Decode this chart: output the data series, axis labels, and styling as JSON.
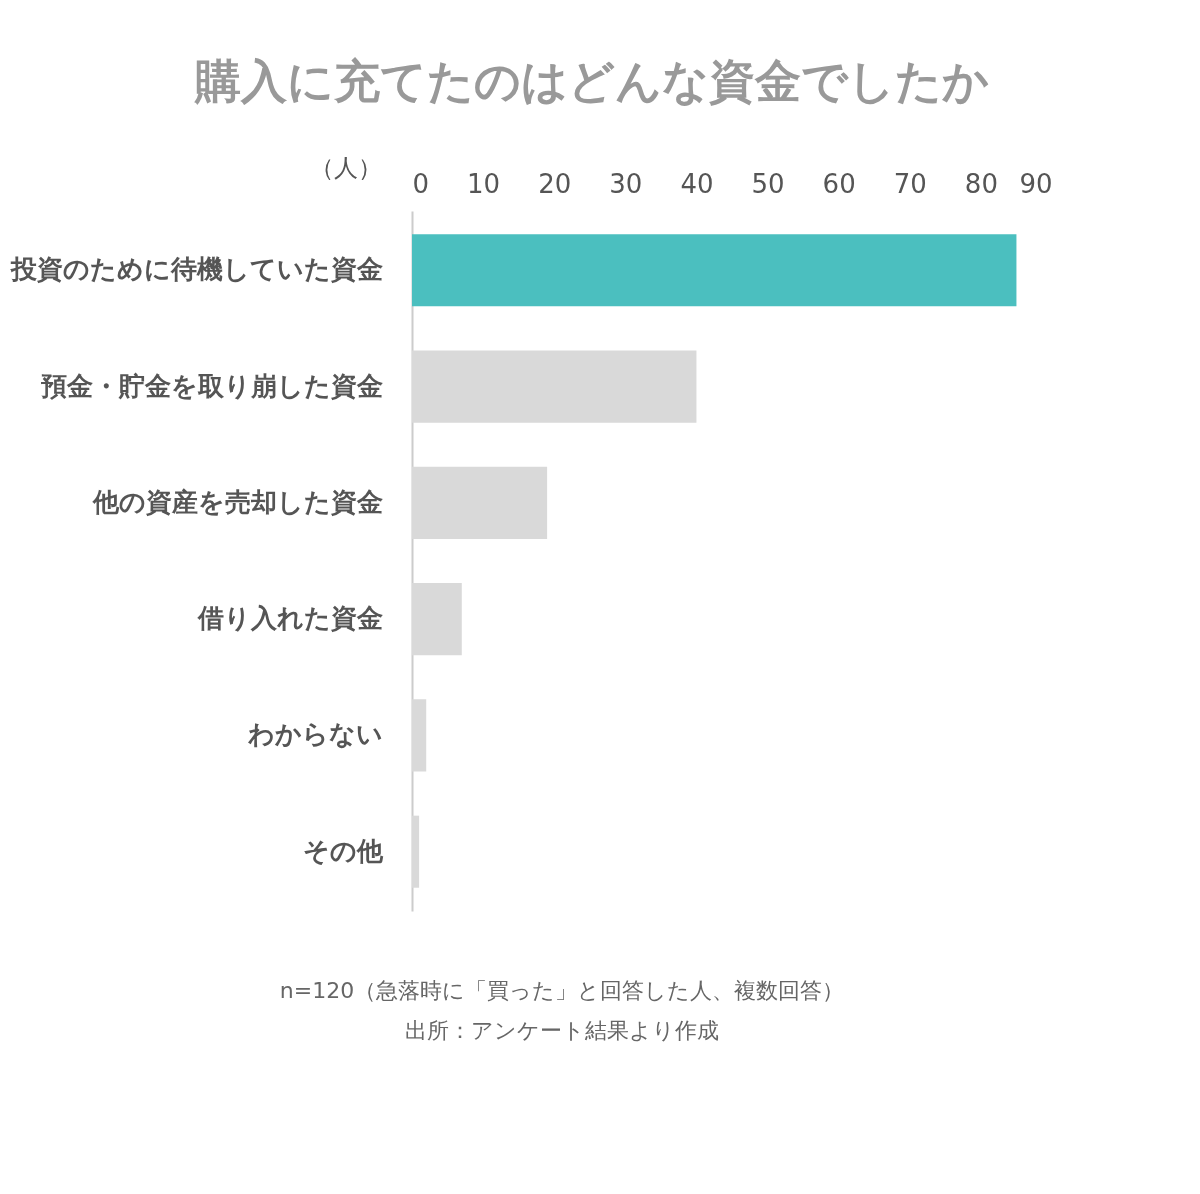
{
  "chart_data": {
    "type": "bar",
    "orientation": "horizontal",
    "title": "購入に充てたのはどんな資金でしたか",
    "xlabel": "（人）",
    "categories": [
      "投資のために待機していた資金",
      "預金・貯金を取り崩した資金",
      "他の資産を売却した資金",
      "借り入れた資金",
      "わからない",
      "その他"
    ],
    "values": [
      85,
      40,
      19,
      7,
      2,
      1
    ],
    "colors": [
      "#4bbfbf",
      "#d9d9d9",
      "#d9d9d9",
      "#d9d9d9",
      "#d9d9d9",
      "#d9d9d9"
    ],
    "xlim": [
      0,
      90
    ],
    "xticks": [
      0,
      10,
      20,
      30,
      40,
      50,
      60,
      70,
      80,
      90
    ],
    "grid": false,
    "annotations": [
      "n=120（急落時に「買った」と回答した人、複数回答）",
      "出所：アンケート結果より作成"
    ]
  }
}
